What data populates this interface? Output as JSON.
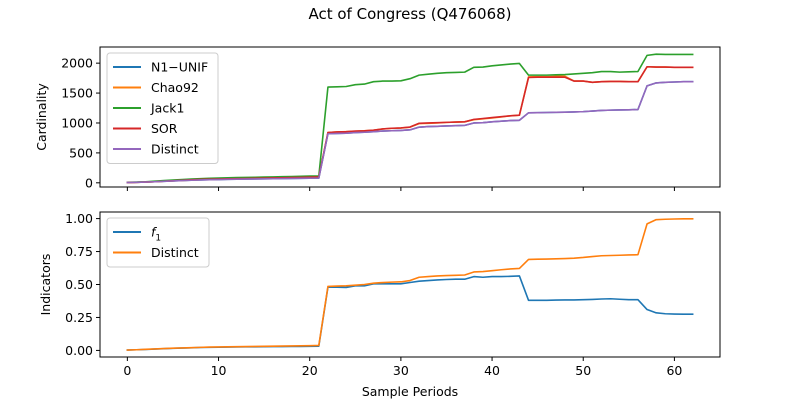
{
  "figure_title": "Act of Congress (Q476068)",
  "chart_data": [
    {
      "type": "line",
      "xlabel": "",
      "ylabel": "Cardinality",
      "xlim": [
        -3,
        65
      ],
      "ylim": [
        -70,
        2270
      ],
      "xticks": [
        0,
        10,
        20,
        30,
        40,
        50,
        60
      ],
      "show_xtick_labels": false,
      "yticks": [
        0,
        500,
        1000,
        1500,
        2000
      ],
      "ytick_labels": [
        "0",
        "500",
        "1000",
        "1500",
        "2000"
      ],
      "legend": {
        "position": "upper-left"
      },
      "grid": false,
      "x": [
        0,
        1,
        2,
        3,
        4,
        5,
        6,
        7,
        8,
        9,
        10,
        11,
        12,
        13,
        14,
        15,
        16,
        17,
        18,
        19,
        20,
        21,
        22,
        23,
        24,
        25,
        26,
        27,
        28,
        29,
        30,
        31,
        32,
        33,
        34,
        35,
        36,
        37,
        38,
        39,
        40,
        41,
        42,
        43,
        44,
        45,
        46,
        47,
        48,
        49,
        50,
        51,
        52,
        53,
        54,
        55,
        56,
        57,
        58,
        59,
        60,
        61,
        62
      ],
      "series": [
        {
          "name": "N1−UNIF",
          "color": "#1f77b4",
          "values": [
            5,
            8,
            12,
            18,
            25,
            32,
            38,
            43,
            48,
            52,
            55,
            58,
            61,
            63,
            65,
            67,
            69,
            71,
            73,
            75,
            77,
            80,
            820,
            825,
            830,
            840,
            845,
            855,
            865,
            870,
            875,
            885,
            930,
            940,
            945,
            950,
            955,
            960,
            1000,
            1005,
            1020,
            1030,
            1040,
            1045,
            1170,
            1172,
            1175,
            1178,
            1180,
            1185,
            1190,
            1200,
            1210,
            1215,
            1218,
            1220,
            1225,
            1620,
            1670,
            1680,
            1685,
            1690,
            1690
          ]
        },
        {
          "name": "Chao92",
          "color": "#ff7f0e",
          "values": [
            5,
            8,
            12,
            18,
            26,
            33,
            40,
            46,
            52,
            57,
            61,
            64,
            67,
            70,
            73,
            76,
            79,
            82,
            85,
            88,
            92,
            95,
            840,
            850,
            855,
            862,
            870,
            880,
            900,
            910,
            915,
            930,
            990,
            995,
            1000,
            1010,
            1015,
            1020,
            1055,
            1070,
            1085,
            1100,
            1120,
            1130,
            1770,
            1775,
            1775,
            1780,
            1780,
            1700,
            1700,
            1680,
            1690,
            1695,
            1695,
            1690,
            1690,
            1940,
            1935,
            1935,
            1930,
            1930,
            1930
          ]
        },
        {
          "name": "Jack1",
          "color": "#2ca02c",
          "values": [
            8,
            12,
            18,
            28,
            38,
            46,
            55,
            63,
            70,
            75,
            80,
            84,
            87,
            90,
            93,
            96,
            99,
            102,
            105,
            108,
            112,
            115,
            1600,
            1605,
            1610,
            1640,
            1650,
            1690,
            1700,
            1700,
            1705,
            1740,
            1800,
            1815,
            1830,
            1840,
            1845,
            1850,
            1930,
            1935,
            1955,
            1970,
            1985,
            1995,
            1800,
            1800,
            1800,
            1805,
            1810,
            1820,
            1830,
            1840,
            1860,
            1860,
            1850,
            1855,
            1860,
            2130,
            2150,
            2145,
            2145,
            2145,
            2145
          ]
        },
        {
          "name": "SOR",
          "color": "#d62728",
          "values": [
            5,
            8,
            12,
            18,
            26,
            34,
            42,
            50,
            56,
            60,
            63,
            66,
            69,
            72,
            75,
            78,
            81,
            84,
            87,
            90,
            94,
            98,
            840,
            850,
            855,
            865,
            870,
            880,
            900,
            912,
            918,
            932,
            995,
            1000,
            1005,
            1010,
            1015,
            1020,
            1060,
            1075,
            1090,
            1105,
            1120,
            1130,
            1760,
            1765,
            1765,
            1765,
            1765,
            1700,
            1700,
            1680,
            1690,
            1695,
            1695,
            1690,
            1690,
            1940,
            1935,
            1935,
            1930,
            1930,
            1930
          ]
        },
        {
          "name": "Distinct",
          "color": "#9467bd",
          "values": [
            5,
            8,
            12,
            18,
            25,
            32,
            38,
            43,
            48,
            52,
            55,
            58,
            61,
            63,
            65,
            67,
            69,
            71,
            73,
            75,
            77,
            80,
            820,
            825,
            830,
            840,
            845,
            855,
            865,
            870,
            875,
            885,
            930,
            940,
            945,
            950,
            955,
            960,
            1000,
            1005,
            1020,
            1030,
            1040,
            1045,
            1170,
            1172,
            1175,
            1178,
            1180,
            1185,
            1190,
            1200,
            1210,
            1215,
            1218,
            1220,
            1225,
            1620,
            1670,
            1680,
            1685,
            1690,
            1690
          ]
        }
      ]
    },
    {
      "type": "line",
      "xlabel": "Sample Periods",
      "ylabel": "Indicators",
      "xlim": [
        -3,
        65
      ],
      "ylim": [
        -0.05,
        1.05
      ],
      "xticks": [
        0,
        10,
        20,
        30,
        40,
        50,
        60
      ],
      "xtick_labels": [
        "0",
        "10",
        "20",
        "30",
        "40",
        "50",
        "60"
      ],
      "yticks": [
        0.0,
        0.25,
        0.5,
        0.75,
        1.0
      ],
      "ytick_labels": [
        "0.00",
        "0.25",
        "0.50",
        "0.75",
        "1.00"
      ],
      "legend": {
        "position": "upper-left"
      },
      "grid": false,
      "x": [
        0,
        1,
        2,
        3,
        4,
        5,
        6,
        7,
        8,
        9,
        10,
        11,
        12,
        13,
        14,
        15,
        16,
        17,
        18,
        19,
        20,
        21,
        22,
        23,
        24,
        25,
        26,
        27,
        28,
        29,
        30,
        31,
        32,
        33,
        34,
        35,
        36,
        37,
        38,
        39,
        40,
        41,
        42,
        43,
        44,
        45,
        46,
        47,
        48,
        49,
        50,
        51,
        52,
        53,
        54,
        55,
        56,
        57,
        58,
        59,
        60,
        61,
        62
      ],
      "series": [
        {
          "name": "f1",
          "legend_main": "f",
          "legend_sub": "1",
          "color": "#1f77b4",
          "values": [
            0.003,
            0.005,
            0.007,
            0.01,
            0.013,
            0.016,
            0.018,
            0.02,
            0.022,
            0.023,
            0.024,
            0.025,
            0.026,
            0.027,
            0.027,
            0.028,
            0.029,
            0.029,
            0.03,
            0.03,
            0.031,
            0.032,
            0.48,
            0.48,
            0.478,
            0.49,
            0.49,
            0.505,
            0.505,
            0.505,
            0.505,
            0.515,
            0.525,
            0.53,
            0.535,
            0.538,
            0.54,
            0.54,
            0.56,
            0.555,
            0.56,
            0.56,
            0.562,
            0.565,
            0.38,
            0.38,
            0.38,
            0.382,
            0.383,
            0.383,
            0.385,
            0.387,
            0.39,
            0.392,
            0.388,
            0.385,
            0.385,
            0.31,
            0.285,
            0.278,
            0.276,
            0.275,
            0.275
          ]
        },
        {
          "name": "Distinct",
          "color": "#ff7f0e",
          "values": [
            0.003,
            0.005,
            0.008,
            0.011,
            0.014,
            0.017,
            0.019,
            0.021,
            0.023,
            0.025,
            0.026,
            0.027,
            0.028,
            0.029,
            0.03,
            0.031,
            0.032,
            0.033,
            0.034,
            0.035,
            0.036,
            0.038,
            0.485,
            0.488,
            0.49,
            0.495,
            0.5,
            0.51,
            0.515,
            0.518,
            0.52,
            0.53,
            0.555,
            0.56,
            0.565,
            0.568,
            0.57,
            0.572,
            0.595,
            0.598,
            0.605,
            0.612,
            0.618,
            0.622,
            0.69,
            0.692,
            0.693,
            0.695,
            0.697,
            0.7,
            0.705,
            0.712,
            0.718,
            0.72,
            0.722,
            0.724,
            0.726,
            0.96,
            0.992,
            0.995,
            0.997,
            0.998,
            0.998
          ]
        }
      ]
    }
  ]
}
